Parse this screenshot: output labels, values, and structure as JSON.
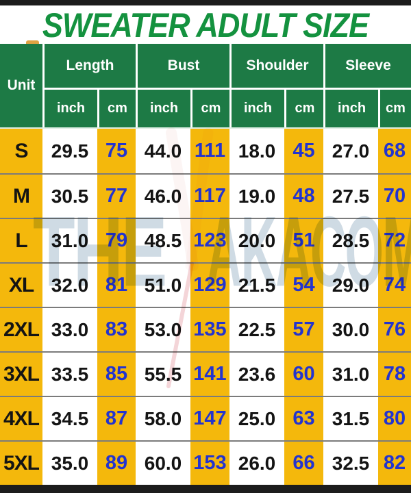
{
  "title": "SWEATER ADULT SIZE",
  "header": {
    "unit_label": "Unit",
    "groups": [
      "Length",
      "Bust",
      "Shoulder",
      "Sleeve"
    ],
    "sub_labels": [
      "inch",
      "cm"
    ]
  },
  "chart_data": {
    "type": "table",
    "title": "SWEATER ADULT SIZE",
    "columns": [
      "Unit",
      "Length inch",
      "Length cm",
      "Bust inch",
      "Bust cm",
      "Shoulder inch",
      "Shoulder cm",
      "Sleeve inch",
      "Sleeve cm"
    ],
    "rows": [
      [
        "S",
        "29.5",
        "75",
        "44.0",
        "111",
        "18.0",
        "45",
        "27.0",
        "68"
      ],
      [
        "M",
        "30.5",
        "77",
        "46.0",
        "117",
        "19.0",
        "48",
        "27.5",
        "70"
      ],
      [
        "L",
        "31.0",
        "79",
        "48.5",
        "123",
        "20.0",
        "51",
        "28.5",
        "72"
      ],
      [
        "XL",
        "32.0",
        "81",
        "51.0",
        "129",
        "21.5",
        "54",
        "29.0",
        "74"
      ],
      [
        "2XL",
        "33.0",
        "83",
        "53.0",
        "135",
        "22.5",
        "57",
        "30.0",
        "76"
      ],
      [
        "3XL",
        "33.5",
        "85",
        "55.5",
        "141",
        "23.6",
        "60",
        "31.0",
        "78"
      ],
      [
        "4XL",
        "34.5",
        "87",
        "58.0",
        "147",
        "25.0",
        "63",
        "31.5",
        "80"
      ],
      [
        "5XL",
        "35.0",
        "89",
        "60.0",
        "153",
        "26.0",
        "66",
        "32.5",
        "82"
      ]
    ]
  },
  "watermark": {
    "left": "THE",
    "right": "AKACOM"
  },
  "colors": {
    "header_green": "#1d7a45",
    "title_green": "#14923f",
    "cell_yellow": "#f4b80c",
    "value_blue": "#2334cf",
    "text_black": "#141414",
    "row_line_gray": "#7b7b7b",
    "bar_black": "#1c1c1c",
    "watermark_blue": "#9fb6c9",
    "watermark_red": "#cc3a48"
  }
}
